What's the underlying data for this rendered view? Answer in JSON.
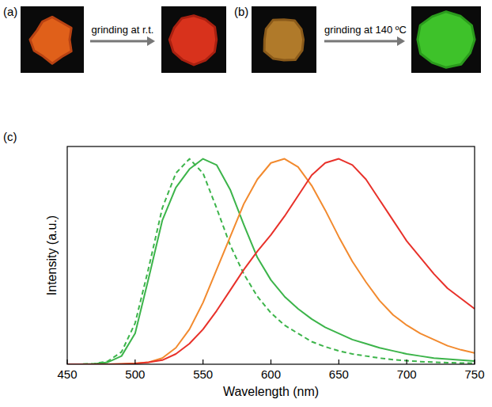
{
  "chart_data": {
    "type": "line",
    "annotations": [
      "(a)",
      "grinding at r.t.",
      "(b)",
      "grinding at 140 ºC",
      "(c)"
    ],
    "x_label": "Wavelength (nm)",
    "y_label": "Intensity (a.u.)",
    "x": [
      450,
      460,
      470,
      480,
      490,
      500,
      510,
      520,
      530,
      540,
      550,
      560,
      570,
      580,
      590,
      600,
      610,
      620,
      630,
      640,
      650,
      660,
      670,
      680,
      690,
      700,
      710,
      720,
      730,
      740,
      750
    ],
    "series": [
      {
        "color": "#3cb44a",
        "line_style": "solid",
        "values": [
          0,
          0,
          0.002,
          0.01,
          0.04,
          0.15,
          0.42,
          0.7,
          0.86,
          0.95,
          1.0,
          0.97,
          0.85,
          0.68,
          0.52,
          0.41,
          0.33,
          0.27,
          0.22,
          0.18,
          0.15,
          0.12,
          0.1,
          0.08,
          0.065,
          0.05,
          0.04,
          0.03,
          0.025,
          0.02,
          0.015
        ]
      },
      {
        "color": "#3cb44a",
        "line_style": "dashed",
        "values": [
          0,
          0,
          0.003,
          0.015,
          0.06,
          0.2,
          0.47,
          0.76,
          0.93,
          1.0,
          0.93,
          0.76,
          0.58,
          0.44,
          0.33,
          0.25,
          0.19,
          0.15,
          0.11,
          0.085,
          0.065,
          0.05,
          0.04,
          0.03,
          0.022,
          0.017,
          0.013,
          0.01,
          0.008,
          0.006,
          0.005
        ]
      },
      {
        "color": "#f28a2e",
        "line_style": "solid",
        "values": [
          0,
          0,
          0,
          0,
          0.002,
          0.005,
          0.01,
          0.03,
          0.08,
          0.17,
          0.3,
          0.46,
          0.62,
          0.78,
          0.9,
          0.98,
          1.0,
          0.96,
          0.87,
          0.75,
          0.62,
          0.5,
          0.4,
          0.31,
          0.24,
          0.19,
          0.15,
          0.12,
          0.09,
          0.07,
          0.055
        ]
      },
      {
        "color": "#e8312a",
        "line_style": "solid",
        "values": [
          0,
          0,
          0,
          0,
          0.001,
          0.003,
          0.01,
          0.02,
          0.05,
          0.1,
          0.17,
          0.26,
          0.36,
          0.46,
          0.55,
          0.63,
          0.72,
          0.82,
          0.92,
          0.98,
          1.0,
          0.97,
          0.9,
          0.8,
          0.7,
          0.6,
          0.52,
          0.44,
          0.37,
          0.32,
          0.27
        ]
      }
    ],
    "xlim": [
      450,
      750
    ],
    "xticks": [
      450,
      500,
      550,
      600,
      650,
      700,
      750
    ],
    "ylim": [
      0,
      1.06
    ],
    "tick_labels": "x"
  }
}
